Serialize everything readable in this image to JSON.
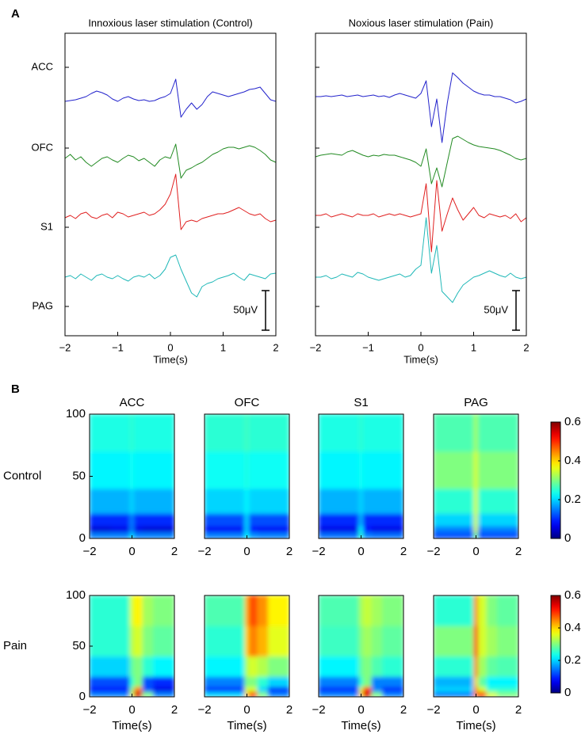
{
  "chart_data": [
    {
      "type": "line",
      "panel_label": "A",
      "title": "Innoxious laser stimulation (Control)",
      "x_label": "Time(s)",
      "xlim": [
        -2,
        2
      ],
      "xticks": [
        {
          "value": -2,
          "label": "−2"
        },
        {
          "value": -1,
          "label": "−1"
        },
        0,
        1,
        2
      ],
      "ylim": [
        -37,
        345
      ],
      "yticks": [
        {
          "value": 302,
          "label": "ACC"
        },
        {
          "value": 200,
          "label": "OFC"
        },
        {
          "value": 100,
          "label": "S1"
        },
        {
          "value": 0,
          "label": "PAG"
        }
      ],
      "scale_bar": {
        "value": 50,
        "label": "50μV"
      },
      "x": [
        -2,
        -1.9,
        -1.8,
        -1.7,
        -1.6,
        -1.5,
        -1.4,
        -1.3,
        -1.2,
        -1.1,
        -1,
        -0.9,
        -0.8,
        -0.7,
        -0.6,
        -0.5,
        -0.4,
        -0.3,
        -0.2,
        -0.1,
        0,
        0.1,
        0.2,
        0.3,
        0.4,
        0.5,
        0.6,
        0.7,
        0.8,
        0.9,
        1,
        1.1,
        1.2,
        1.3,
        1.4,
        1.5,
        1.6,
        1.7,
        1.8,
        1.9,
        2
      ],
      "series": [
        {
          "name": "ACC",
          "color": "#2424cc",
          "values": [
            259,
            260,
            261,
            263,
            265,
            269,
            272,
            270,
            267,
            262,
            259,
            263,
            265,
            262,
            260,
            261,
            259,
            260,
            263,
            265,
            269,
            287,
            239,
            249,
            257,
            249,
            255,
            265,
            271,
            269,
            267,
            265,
            267,
            269,
            271,
            274,
            275,
            277,
            269,
            261,
            259
          ]
        },
        {
          "name": "OFC",
          "color": "#238b23",
          "values": [
            187,
            192,
            185,
            189,
            182,
            177,
            182,
            187,
            189,
            185,
            182,
            187,
            191,
            189,
            184,
            187,
            182,
            177,
            185,
            189,
            187,
            205,
            162,
            172,
            175,
            179,
            182,
            187,
            192,
            195,
            199,
            201,
            201,
            199,
            201,
            203,
            201,
            197,
            192,
            185,
            182
          ]
        },
        {
          "name": "S1",
          "color": "#e02020",
          "values": [
            112,
            115,
            111,
            117,
            119,
            113,
            111,
            115,
            117,
            112,
            119,
            117,
            113,
            115,
            117,
            119,
            115,
            117,
            122,
            129,
            142,
            167,
            97,
            107,
            109,
            107,
            111,
            113,
            115,
            117,
            117,
            119,
            122,
            125,
            121,
            117,
            115,
            117,
            111,
            107,
            109
          ]
        },
        {
          "name": "PAG",
          "color": "#20b8b8",
          "values": [
            37,
            39,
            35,
            41,
            37,
            33,
            39,
            41,
            37,
            35,
            39,
            35,
            32,
            37,
            39,
            37,
            41,
            35,
            39,
            47,
            62,
            65,
            47,
            32,
            17,
            12,
            25,
            29,
            31,
            35,
            37,
            39,
            42,
            37,
            33,
            41,
            39,
            37,
            35,
            41,
            42
          ]
        }
      ]
    },
    {
      "type": "line",
      "title": "Noxious laser stimulation (Pain)",
      "x_label": "Time(s)",
      "xlim": [
        -2,
        2
      ],
      "xticks": [
        {
          "value": -2,
          "label": "−2"
        },
        {
          "value": -1,
          "label": "−1"
        },
        0,
        1,
        2
      ],
      "ylim": [
        -37,
        345
      ],
      "yticks": [
        302,
        200,
        100,
        0
      ],
      "scale_bar": {
        "value": 50,
        "label": "50μV"
      },
      "x": [
        -2,
        -1.9,
        -1.8,
        -1.7,
        -1.6,
        -1.5,
        -1.4,
        -1.3,
        -1.2,
        -1.1,
        -1,
        -0.9,
        -0.8,
        -0.7,
        -0.6,
        -0.5,
        -0.4,
        -0.3,
        -0.2,
        -0.1,
        0,
        0.1,
        0.2,
        0.3,
        0.4,
        0.5,
        0.6,
        0.7,
        0.8,
        0.9,
        1,
        1.1,
        1.2,
        1.3,
        1.4,
        1.5,
        1.6,
        1.7,
        1.8,
        1.9,
        2
      ],
      "series": [
        {
          "name": "ACC",
          "color": "#2424cc",
          "values": [
            265,
            265,
            266,
            265,
            266,
            267,
            265,
            266,
            267,
            265,
            266,
            267,
            265,
            266,
            264,
            267,
            269,
            267,
            265,
            263,
            269,
            285,
            227,
            262,
            207,
            257,
            295,
            289,
            282,
            277,
            272,
            269,
            267,
            267,
            265,
            265,
            263,
            261,
            257,
            259,
            262
          ]
        },
        {
          "name": "OFC",
          "color": "#238b23",
          "values": [
            189,
            191,
            192,
            193,
            192,
            191,
            195,
            197,
            194,
            191,
            189,
            191,
            190,
            192,
            191,
            191,
            189,
            187,
            185,
            182,
            177,
            199,
            155,
            175,
            151,
            182,
            212,
            215,
            211,
            207,
            204,
            202,
            201,
            200,
            199,
            197,
            194,
            191,
            187,
            185,
            187
          ]
        },
        {
          "name": "S1",
          "color": "#e02020",
          "values": [
            115,
            115,
            117,
            113,
            115,
            117,
            115,
            113,
            117,
            115,
            115,
            117,
            113,
            115,
            117,
            115,
            117,
            115,
            113,
            115,
            117,
            155,
            69,
            159,
            95,
            117,
            137,
            122,
            109,
            117,
            125,
            115,
            112,
            117,
            115,
            113,
            115,
            111,
            117,
            107,
            112
          ]
        },
        {
          "name": "PAG",
          "color": "#20b8b8",
          "values": [
            37,
            37,
            39,
            35,
            37,
            41,
            39,
            37,
            43,
            41,
            37,
            35,
            33,
            35,
            37,
            39,
            41,
            37,
            39,
            47,
            52,
            112,
            42,
            77,
            19,
            12,
            5,
            17,
            27,
            32,
            37,
            39,
            42,
            45,
            42,
            39,
            37,
            42,
            37,
            35,
            37
          ]
        }
      ]
    },
    {
      "type": "heatmap",
      "panel_label": "B",
      "title": "ACC",
      "row_label": "Control",
      "xlim": [
        -2,
        2
      ],
      "xticks": [
        {
          "value": -2,
          "label": "−2"
        },
        0,
        2
      ],
      "ylim": [
        0,
        100
      ],
      "yticks": [
        0,
        50,
        100
      ],
      "clim": [
        0,
        0.6
      ],
      "x_edges": [
        -2,
        -1,
        -0.1,
        0.1,
        0.5,
        1,
        2
      ],
      "y_edges": [
        0,
        5,
        10,
        20,
        40,
        70,
        100
      ],
      "values": [
        [
          0.15,
          0.15,
          0.2,
          0.15,
          0.15,
          0.15
        ],
        [
          0.05,
          0.06,
          0.15,
          0.06,
          0.05,
          0.05
        ],
        [
          0.1,
          0.1,
          0.15,
          0.1,
          0.1,
          0.1
        ],
        [
          0.18,
          0.18,
          0.2,
          0.18,
          0.18,
          0.18
        ],
        [
          0.22,
          0.22,
          0.23,
          0.22,
          0.22,
          0.22
        ],
        [
          0.24,
          0.24,
          0.25,
          0.24,
          0.24,
          0.24
        ]
      ]
    },
    {
      "type": "heatmap",
      "title": "OFC",
      "xlim": [
        -2,
        2
      ],
      "xticks": [
        {
          "value": -2,
          "label": "−2"
        },
        0,
        2
      ],
      "ylim": [
        0,
        100
      ],
      "clim": [
        0,
        0.6
      ],
      "x_edges": [
        -2,
        -1,
        -0.1,
        0.1,
        0.5,
        1,
        2
      ],
      "y_edges": [
        0,
        5,
        10,
        20,
        40,
        70,
        100
      ],
      "values": [
        [
          0.15,
          0.15,
          0.22,
          0.16,
          0.15,
          0.15
        ],
        [
          0.07,
          0.07,
          0.2,
          0.08,
          0.07,
          0.07
        ],
        [
          0.12,
          0.12,
          0.2,
          0.12,
          0.12,
          0.12
        ],
        [
          0.2,
          0.2,
          0.22,
          0.2,
          0.2,
          0.2
        ],
        [
          0.23,
          0.23,
          0.24,
          0.23,
          0.23,
          0.23
        ],
        [
          0.25,
          0.25,
          0.26,
          0.25,
          0.25,
          0.25
        ]
      ]
    },
    {
      "type": "heatmap",
      "title": "S1",
      "xlim": [
        -2,
        2
      ],
      "xticks": [
        {
          "value": -2,
          "label": "−2"
        },
        0,
        2
      ],
      "ylim": [
        0,
        100
      ],
      "clim": [
        0,
        0.6
      ],
      "x_edges": [
        -2,
        -1,
        -0.1,
        0.1,
        0.5,
        1,
        2
      ],
      "y_edges": [
        0,
        5,
        10,
        20,
        40,
        70,
        100
      ],
      "values": [
        [
          0.14,
          0.14,
          0.25,
          0.15,
          0.14,
          0.14
        ],
        [
          0.06,
          0.06,
          0.22,
          0.08,
          0.06,
          0.06
        ],
        [
          0.1,
          0.1,
          0.18,
          0.1,
          0.1,
          0.1
        ],
        [
          0.18,
          0.18,
          0.2,
          0.18,
          0.18,
          0.18
        ],
        [
          0.22,
          0.22,
          0.23,
          0.22,
          0.22,
          0.22
        ],
        [
          0.24,
          0.24,
          0.25,
          0.24,
          0.24,
          0.24
        ]
      ]
    },
    {
      "type": "heatmap",
      "title": "PAG",
      "xlim": [
        -2,
        2
      ],
      "xticks": [
        {
          "value": -2,
          "label": "−2"
        },
        0,
        2
      ],
      "ylim": [
        0,
        100
      ],
      "clim": [
        0,
        0.6
      ],
      "x_edges": [
        -2,
        -1,
        -0.1,
        0.1,
        0.5,
        1,
        2
      ],
      "y_edges": [
        0,
        5,
        10,
        20,
        40,
        70,
        100
      ],
      "values": [
        [
          0.12,
          0.12,
          0.3,
          0.12,
          0.12,
          0.12
        ],
        [
          0.15,
          0.15,
          0.35,
          0.15,
          0.15,
          0.15
        ],
        [
          0.2,
          0.2,
          0.35,
          0.2,
          0.2,
          0.2
        ],
        [
          0.25,
          0.25,
          0.35,
          0.25,
          0.25,
          0.25
        ],
        [
          0.3,
          0.3,
          0.35,
          0.3,
          0.3,
          0.3
        ],
        [
          0.27,
          0.27,
          0.32,
          0.27,
          0.27,
          0.27
        ]
      ]
    },
    {
      "type": "heatmap",
      "row_label": "Pain",
      "x_label": "Time(s)",
      "xlim": [
        -2,
        2
      ],
      "xticks": [
        {
          "value": -2,
          "label": "−2"
        },
        0,
        2
      ],
      "ylim": [
        0,
        100
      ],
      "yticks": [
        0,
        50,
        100
      ],
      "clim": [
        0,
        0.6
      ],
      "x_edges": [
        -2,
        -1,
        -0.1,
        0.1,
        0.5,
        1,
        2
      ],
      "y_edges": [
        0,
        5,
        10,
        20,
        40,
        70,
        100
      ],
      "values": [
        [
          0.15,
          0.15,
          0.35,
          0.55,
          0.3,
          0.15
        ],
        [
          0.08,
          0.08,
          0.3,
          0.45,
          0.12,
          0.06
        ],
        [
          0.12,
          0.12,
          0.25,
          0.3,
          0.12,
          0.1
        ],
        [
          0.2,
          0.2,
          0.28,
          0.3,
          0.25,
          0.22
        ],
        [
          0.25,
          0.25,
          0.33,
          0.35,
          0.3,
          0.28
        ],
        [
          0.25,
          0.25,
          0.35,
          0.38,
          0.32,
          0.3
        ]
      ]
    },
    {
      "type": "heatmap",
      "x_label": "Time(s)",
      "xlim": [
        -2,
        2
      ],
      "xticks": [
        {
          "value": -2,
          "label": "−2"
        },
        0,
        2
      ],
      "ylim": [
        0,
        100
      ],
      "clim": [
        0,
        0.6
      ],
      "x_edges": [
        -2,
        -1,
        -0.1,
        0.1,
        0.5,
        1,
        2
      ],
      "y_edges": [
        0,
        5,
        10,
        20,
        40,
        70,
        100
      ],
      "values": [
        [
          0.2,
          0.2,
          0.4,
          0.5,
          0.3,
          0.15
        ],
        [
          0.1,
          0.1,
          0.35,
          0.35,
          0.2,
          0.1
        ],
        [
          0.15,
          0.15,
          0.3,
          0.3,
          0.25,
          0.2
        ],
        [
          0.22,
          0.22,
          0.33,
          0.35,
          0.33,
          0.3
        ],
        [
          0.25,
          0.25,
          0.4,
          0.45,
          0.42,
          0.36
        ],
        [
          0.27,
          0.27,
          0.42,
          0.48,
          0.44,
          0.38
        ]
      ]
    },
    {
      "type": "heatmap",
      "x_label": "Time(s)",
      "xlim": [
        -2,
        2
      ],
      "xticks": [
        {
          "value": -2,
          "label": "−2"
        },
        0,
        2
      ],
      "ylim": [
        0,
        100
      ],
      "clim": [
        0,
        0.6
      ],
      "x_edges": [
        -2,
        -1,
        -0.1,
        0.1,
        0.5,
        1,
        2
      ],
      "y_edges": [
        0,
        5,
        10,
        20,
        40,
        70,
        100
      ],
      "values": [
        [
          0.15,
          0.15,
          0.4,
          0.55,
          0.3,
          0.15
        ],
        [
          0.1,
          0.1,
          0.35,
          0.5,
          0.15,
          0.1
        ],
        [
          0.15,
          0.15,
          0.25,
          0.3,
          0.15,
          0.15
        ],
        [
          0.22,
          0.22,
          0.28,
          0.3,
          0.27,
          0.25
        ],
        [
          0.26,
          0.26,
          0.3,
          0.32,
          0.3,
          0.28
        ],
        [
          0.27,
          0.27,
          0.32,
          0.34,
          0.32,
          0.3
        ]
      ]
    },
    {
      "type": "heatmap",
      "x_label": "Time(s)",
      "xlim": [
        -2,
        2
      ],
      "xticks": [
        {
          "value": -2,
          "label": "−2"
        },
        0,
        2
      ],
      "ylim": [
        0,
        100
      ],
      "clim": [
        0,
        0.6
      ],
      "x_edges": [
        -2,
        -1,
        -0.1,
        0.1,
        0.5,
        1,
        2
      ],
      "y_edges": [
        0,
        5,
        10,
        20,
        40,
        70,
        100
      ],
      "values": [
        [
          0.15,
          0.15,
          0.45,
          0.5,
          0.35,
          0.3
        ],
        [
          0.2,
          0.2,
          0.45,
          0.35,
          0.25,
          0.25
        ],
        [
          0.18,
          0.18,
          0.4,
          0.28,
          0.22,
          0.22
        ],
        [
          0.25,
          0.25,
          0.45,
          0.32,
          0.28,
          0.27
        ],
        [
          0.3,
          0.3,
          0.5,
          0.35,
          0.32,
          0.3
        ],
        [
          0.25,
          0.25,
          0.45,
          0.35,
          0.3,
          0.28
        ]
      ]
    },
    {
      "type": "colorbar",
      "clim": [
        0,
        0.6
      ],
      "ticks": [
        0,
        0.2,
        0.4,
        0.6
      ]
    },
    {
      "type": "colorbar",
      "clim": [
        0,
        0.6
      ],
      "ticks": [
        0,
        0.2,
        0.4,
        0.6
      ]
    }
  ]
}
